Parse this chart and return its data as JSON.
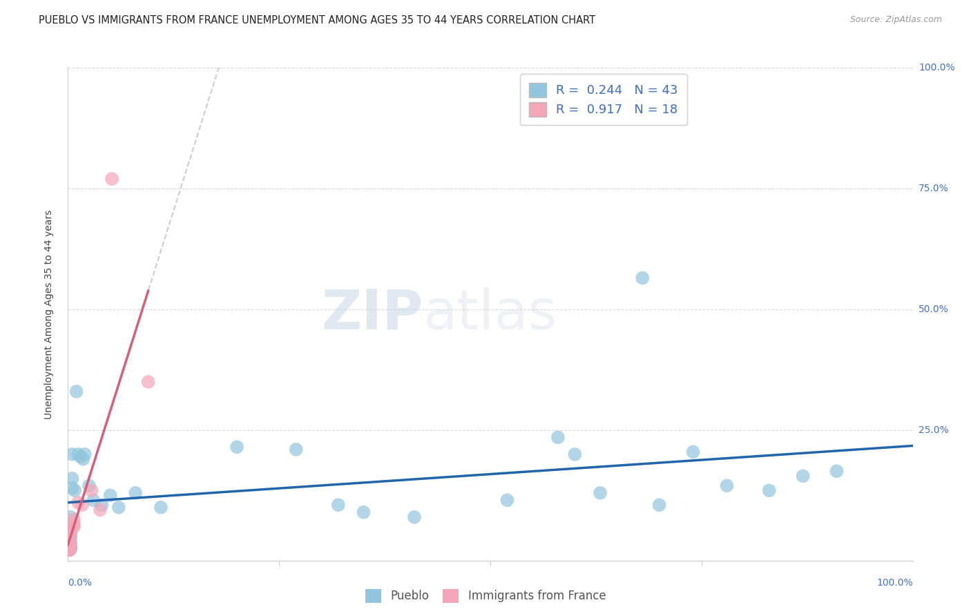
{
  "title": "PUEBLO VS IMMIGRANTS FROM FRANCE UNEMPLOYMENT AMONG AGES 35 TO 44 YEARS CORRELATION CHART",
  "source": "Source: ZipAtlas.com",
  "ylabel": "Unemployment Among Ages 35 to 44 years",
  "xlim": [
    0,
    1.0
  ],
  "ylim": [
    -0.02,
    1.0
  ],
  "watermark_zip": "ZIP",
  "watermark_atlas": "atlas",
  "legend_R_pueblo": "0.244",
  "legend_N_pueblo": "43",
  "legend_R_france": "0.917",
  "legend_N_france": "18",
  "blue_color": "#92c5de",
  "pink_color": "#f4a6b8",
  "trendline_blue_color": "#2166ac",
  "trendline_pink_color": "#d6607a",
  "trendline_dashed_color": "#c8c8c8",
  "pueblo_x": [
    0.01,
    0.005,
    0.005,
    0.005,
    0.003,
    0.003,
    0.003,
    0.003,
    0.003,
    0.003,
    0.003,
    0.003,
    0.003,
    0.002,
    0.002,
    0.008,
    0.012,
    0.015,
    0.018,
    0.02,
    0.025,
    0.03,
    0.04,
    0.05,
    0.06,
    0.08,
    0.11,
    0.2,
    0.27,
    0.32,
    0.35,
    0.41,
    0.52,
    0.58,
    0.6,
    0.63,
    0.68,
    0.7,
    0.74,
    0.78,
    0.83,
    0.87,
    0.91
  ],
  "pueblo_y": [
    0.33,
    0.2,
    0.15,
    0.13,
    0.07,
    0.05,
    0.035,
    0.025,
    0.015,
    0.008,
    0.008,
    0.006,
    0.003,
    0.003,
    0.003,
    0.125,
    0.2,
    0.195,
    0.19,
    0.2,
    0.135,
    0.105,
    0.095,
    0.115,
    0.09,
    0.12,
    0.09,
    0.215,
    0.21,
    0.095,
    0.08,
    0.07,
    0.105,
    0.235,
    0.2,
    0.12,
    0.565,
    0.095,
    0.205,
    0.135,
    0.125,
    0.155,
    0.165
  ],
  "france_x": [
    0.003,
    0.003,
    0.003,
    0.002,
    0.002,
    0.002,
    0.002,
    0.002,
    0.002,
    0.007,
    0.007,
    0.007,
    0.012,
    0.017,
    0.028,
    0.038,
    0.052,
    0.095
  ],
  "france_y": [
    0.04,
    0.03,
    0.015,
    0.008,
    0.004,
    0.003,
    0.003,
    0.002,
    0.002,
    0.065,
    0.055,
    0.05,
    0.1,
    0.095,
    0.125,
    0.085,
    0.77,
    0.35
  ],
  "grid_color": "#d8d8d8",
  "bg_color": "#ffffff",
  "label_color": "#4472c4",
  "legend_text_color": "#4472c4"
}
